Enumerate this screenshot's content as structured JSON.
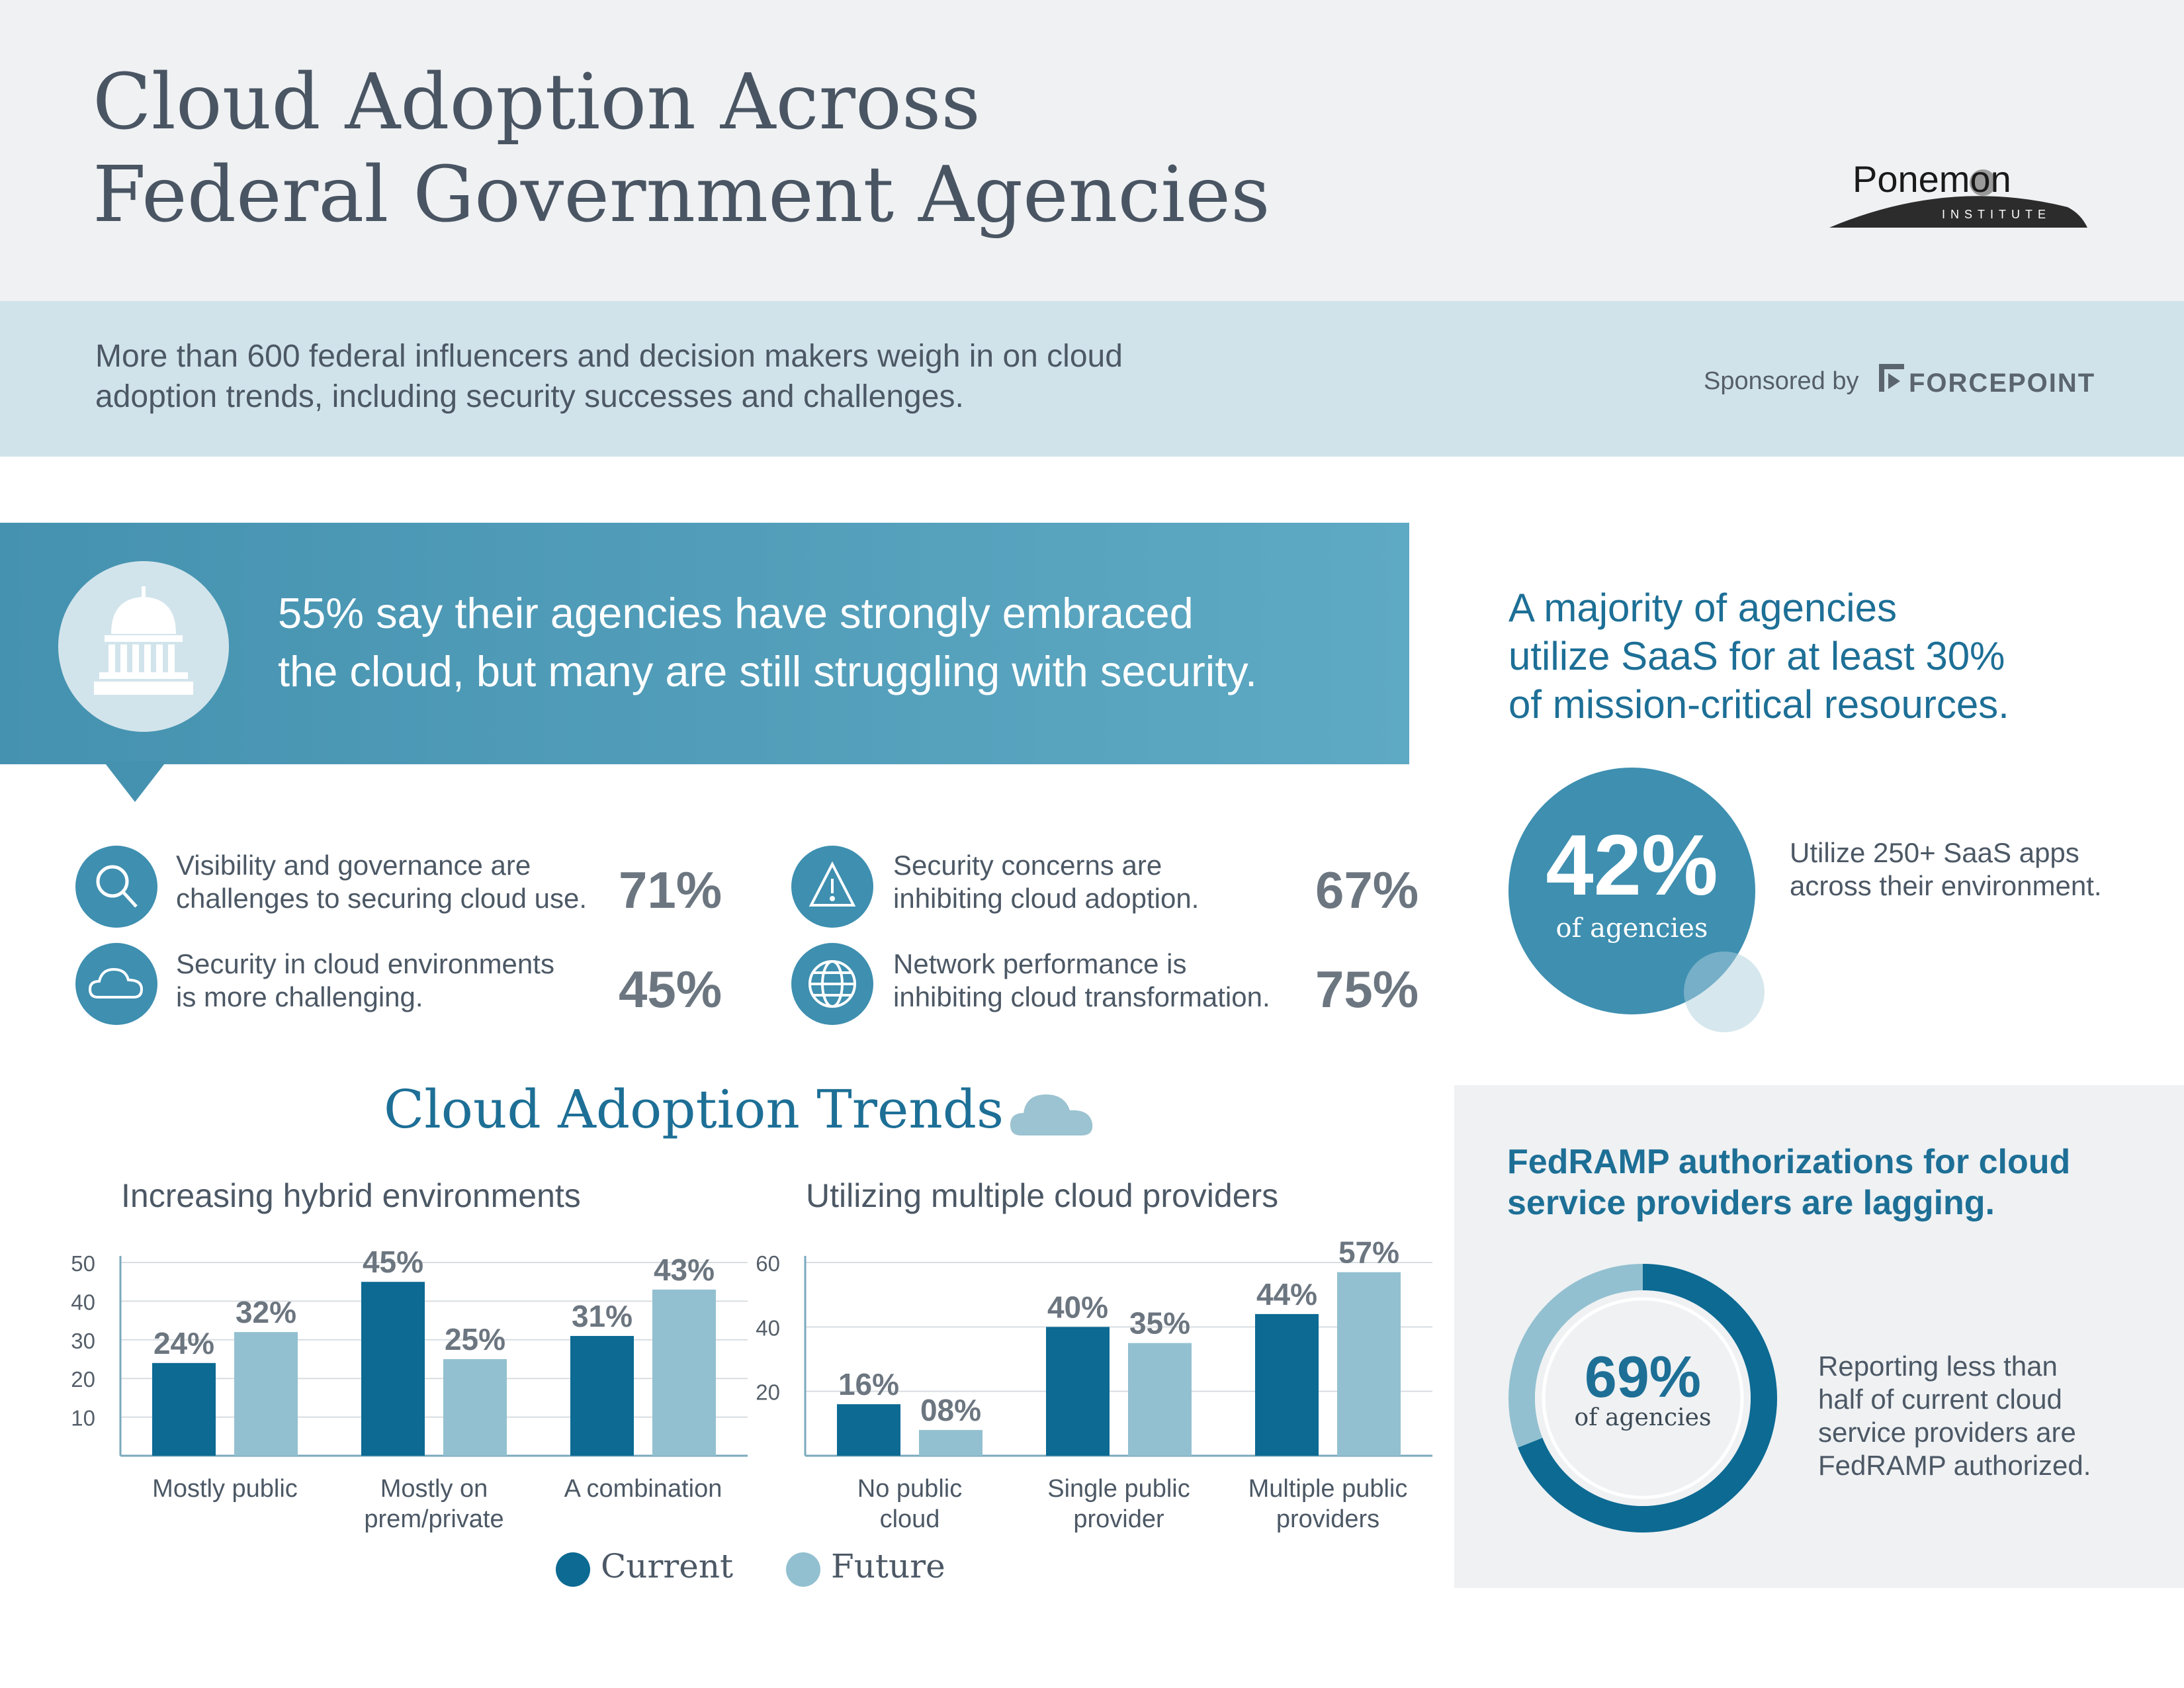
{
  "header": {
    "title_line1": "Cloud Adoption Across",
    "title_line2": "Federal Government Agencies",
    "logo_name": "Ponemon",
    "logo_sub": "INSTITUTE"
  },
  "intro": {
    "line1": "More than 600 federal influencers and decision makers weigh in on cloud",
    "line2": "adoption trends, including security successes and challenges.",
    "sponsor_label": "Sponsored by",
    "sponsor_name": "FORCEPOINT"
  },
  "banner": {
    "line1": "55% say their agencies have strongly embraced",
    "line2": "the cloud, but many are still struggling with security.",
    "icon": "capitol-building-icon"
  },
  "stats": [
    {
      "icon": "magnifier-icon",
      "line1": "Visibility and governance are",
      "line2": "challenges to securing cloud use.",
      "value": "71%"
    },
    {
      "icon": "warning-icon",
      "line1": "Security concerns are",
      "line2": "inhibiting cloud adoption.",
      "value": "67%"
    },
    {
      "icon": "cloud-icon",
      "line1": "Security in cloud environments",
      "line2": "is more challenging.",
      "value": "45%"
    },
    {
      "icon": "globe-icon",
      "line1": "Network performance is",
      "line2": "inhibiting cloud transformation.",
      "value": "75%"
    }
  ],
  "trends": {
    "title": "Cloud Adoption Trends",
    "icon": "cloud-icon"
  },
  "chart_data": [
    {
      "type": "bar",
      "title": "Increasing hybrid environments",
      "categories": [
        [
          "Mostly public"
        ],
        [
          "Mostly on",
          "prem/private"
        ],
        [
          "A combination"
        ]
      ],
      "series": [
        {
          "name": "Current",
          "values": [
            24,
            45,
            31
          ],
          "labels": [
            "24%",
            "45%",
            "31%"
          ]
        },
        {
          "name": "Future",
          "values": [
            32,
            25,
            43
          ],
          "labels": [
            "32%",
            "25%",
            "43%"
          ]
        }
      ],
      "ylim": [
        0,
        50
      ],
      "yticks": [
        10,
        20,
        30,
        40,
        50
      ],
      "grid": true
    },
    {
      "type": "bar",
      "title": "Utilizing multiple cloud providers",
      "categories": [
        [
          "No public",
          "cloud"
        ],
        [
          "Single public",
          "provider"
        ],
        [
          "Multiple public",
          "providers"
        ]
      ],
      "series": [
        {
          "name": "Current",
          "values": [
            16,
            40,
            44
          ],
          "labels": [
            "16%",
            "40%",
            "44%"
          ]
        },
        {
          "name": "Future",
          "values": [
            8,
            35,
            57
          ],
          "labels": [
            "08%",
            "35%",
            "57%"
          ]
        }
      ],
      "ylim": [
        0,
        60
      ],
      "yticks": [
        20,
        40,
        60
      ],
      "grid": true
    }
  ],
  "legend": [
    {
      "label": "Current",
      "color": "#0c6a93"
    },
    {
      "label": "Future",
      "color": "#92c0d0"
    }
  ],
  "saas": {
    "title_line1": "A majority of agencies",
    "title_line2": "utilize SaaS for at least 30%",
    "title_line3": "of mission-critical resources.",
    "value": "42%",
    "caption": "of agencies",
    "desc_line1": "Utilize 250+ SaaS apps",
    "desc_line2": "across their environment."
  },
  "fedramp": {
    "title_line1": "FedRAMP authorizations for cloud",
    "title_line2": "service providers are lagging.",
    "value": "69%",
    "fraction": 0.69,
    "caption": "of agencies",
    "desc_line1": "Reporting less than",
    "desc_line2": "half of current cloud",
    "desc_line3": "service providers are",
    "desc_line4": "FedRAMP authorized."
  },
  "colors": {
    "current": "#0c6a93",
    "future": "#92c0d0",
    "accent": "#1d6f96",
    "banner": "#4592b0"
  }
}
